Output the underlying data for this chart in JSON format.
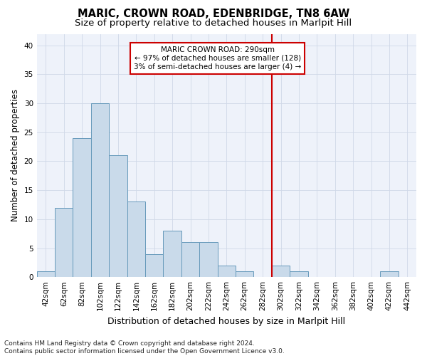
{
  "title": "MARIC, CROWN ROAD, EDENBRIDGE, TN8 6AW",
  "subtitle": "Size of property relative to detached houses in Marlpit Hill",
  "xlabel": "Distribution of detached houses by size in Marlpit Hill",
  "ylabel": "Number of detached properties",
  "bar_labels": [
    "42sqm",
    "62sqm",
    "82sqm",
    "102sqm",
    "122sqm",
    "142sqm",
    "162sqm",
    "182sqm",
    "202sqm",
    "222sqm",
    "242sqm",
    "262sqm",
    "282sqm",
    "302sqm",
    "322sqm",
    "342sqm",
    "362sqm",
    "382sqm",
    "402sqm",
    "422sqm",
    "442sqm"
  ],
  "bar_values": [
    1,
    12,
    24,
    30,
    21,
    13,
    4,
    8,
    6,
    6,
    2,
    1,
    0,
    2,
    1,
    0,
    0,
    0,
    0,
    1,
    0
  ],
  "bar_color": "#c9daea",
  "bar_edge_color": "#6699bb",
  "annotation_line1": "MARIC CROWN ROAD: 290sqm",
  "annotation_line2": "← 97% of detached houses are smaller (128)",
  "annotation_line3": "3% of semi-detached houses are larger (4) →",
  "annotation_box_color": "#ffffff",
  "annotation_box_edge_color": "#cc0000",
  "vline_x_index": 12.5,
  "vline_color": "#cc0000",
  "ylim": [
    0,
    42
  ],
  "yticks": [
    0,
    5,
    10,
    15,
    20,
    25,
    30,
    35,
    40
  ],
  "grid_color": "#d0d8e8",
  "bg_color": "#eef2fa",
  "footer_line1": "Contains HM Land Registry data © Crown copyright and database right 2024.",
  "footer_line2": "Contains public sector information licensed under the Open Government Licence v3.0.",
  "title_fontsize": 10.5,
  "subtitle_fontsize": 9.5,
  "xlabel_fontsize": 9,
  "ylabel_fontsize": 8.5,
  "tick_fontsize": 7.5,
  "annotation_fontsize": 7.5,
  "footer_fontsize": 6.5
}
